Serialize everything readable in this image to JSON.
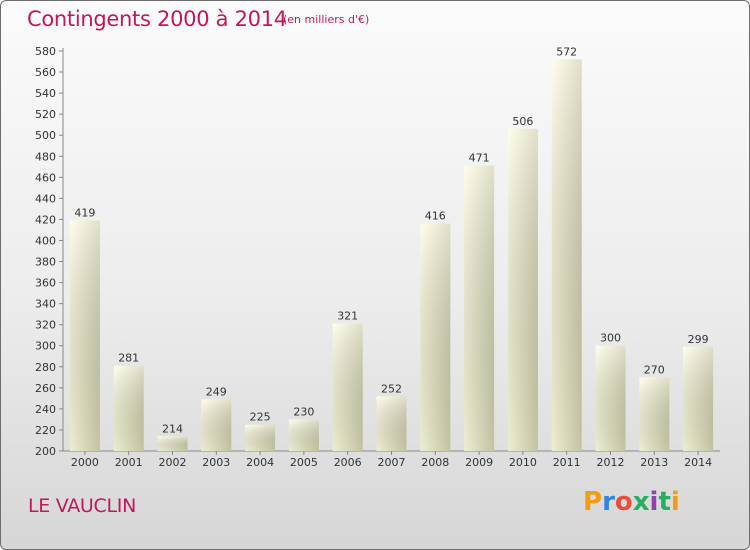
{
  "header": {
    "title": "Contingents 2000 à 2014",
    "subtitle": "(en milliers d'€)"
  },
  "footer": {
    "place": "LE VAUCLIN",
    "logo": "Proxiti"
  },
  "colors": {
    "accent": "#c2185b",
    "bar_light": "#fdfde0",
    "bar_dark": "#d0d0ad"
  },
  "chart_data": {
    "type": "bar",
    "title": "Contingents 2000 à 2014",
    "subtitle": "(en milliers d'€)",
    "categories": [
      "2000",
      "2001",
      "2002",
      "2003",
      "2004",
      "2005",
      "2006",
      "2007",
      "2008",
      "2009",
      "2010",
      "2011",
      "2012",
      "2013",
      "2014"
    ],
    "values": [
      419,
      281,
      214,
      249,
      225,
      230,
      321,
      252,
      416,
      471,
      506,
      572,
      300,
      270,
      299
    ],
    "ylim": [
      200,
      580
    ],
    "yticks": [
      200,
      220,
      240,
      260,
      280,
      300,
      320,
      340,
      360,
      380,
      400,
      420,
      440,
      460,
      480,
      500,
      520,
      540,
      560,
      580
    ],
    "xlabel": "",
    "ylabel": "",
    "grid": false,
    "legend": "none"
  }
}
